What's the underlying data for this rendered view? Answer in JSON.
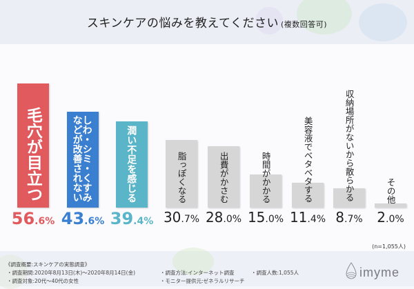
{
  "header": {
    "title": "スキンケアの悩みを教えてください",
    "subtitle": "(複数回答可)"
  },
  "colors": {
    "red": "#e05a5e",
    "blue": "#3b7fd0",
    "teal": "#5ab5c8",
    "gray": "#d6d6d6"
  },
  "chart_data": {
    "type": "bar",
    "title": "スキンケアの悩みを教えてください (複数回答可)",
    "categories": [
      "毛穴が目立つ",
      "しわ・シミ・くすみなどが改善されない",
      "潤い不足を感じる",
      "脂っぽくなる",
      "出費がかさむ",
      "時間がかかる",
      "美容液でベタベタする",
      "収納場所がないから散らかる",
      "その他"
    ],
    "values": [
      56.6,
      43.6,
      39.4,
      30.7,
      28.0,
      15.0,
      11.4,
      8.7,
      2.0
    ],
    "label_lines": [
      [
        "毛穴が目立つ"
      ],
      [
        "しわ・シミ・くすみ",
        "などが改善されない"
      ],
      [
        "潤い不足を感じる"
      ],
      [
        "脂っぽくなる"
      ],
      [
        "出費がかさむ"
      ],
      [
        "時間がかかる"
      ],
      [
        "美容液でベタベタする"
      ],
      [
        "収納場所がないから散らかる"
      ],
      [
        "その他"
      ]
    ],
    "value_labels": [
      [
        "56",
        ".6%"
      ],
      [
        "43",
        ".6%"
      ],
      [
        "39",
        ".4%"
      ],
      [
        "30",
        ".7%"
      ],
      [
        "28",
        ".0%"
      ],
      [
        "15",
        ".0%"
      ],
      [
        "11",
        ".4%"
      ],
      [
        "8",
        ".7%"
      ],
      [
        "2",
        ".0%"
      ]
    ],
    "unit": "%",
    "ylim": [
      0,
      60
    ]
  },
  "sample": "(n=1,055人)",
  "footer": {
    "overview": "《調査概要:スキンケアの実態調査》",
    "period": "・調査期間:2020年8月13日(木)〜2020年8月14日(金)",
    "target": "・調査対象:20代〜40代の女性",
    "method": "・調査方法:インターネット調査",
    "provider": "・モニター提供元:ゼネラルリサーチ",
    "count": "・調査人数:1,055人"
  },
  "brand": {
    "name": "imyme",
    "icon": "droplet-logo-icon"
  }
}
